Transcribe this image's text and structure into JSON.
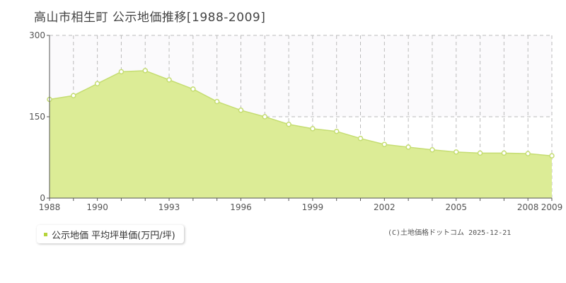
{
  "header": {
    "title": "高山市相生町 公示地価推移[1988-2009]"
  },
  "legend": {
    "label": "公示地価 平均坪単価(万円/坪)"
  },
  "footer": {
    "copyright": "(C)土地価格ドットコム 2025-12-21"
  },
  "colors": {
    "fill": "#dcec96",
    "line": "#c5dd72",
    "marker_stroke": "#c5dd72",
    "marker_fill": "#ffffff",
    "grid": "#bbbbbb",
    "accent": "#b5d43a"
  },
  "chart_data": {
    "type": "area",
    "title": "高山市相生町 公示地価推移[1988-2009]",
    "x": [
      1988,
      1989,
      1990,
      1991,
      1992,
      1993,
      1994,
      1995,
      1996,
      1997,
      1998,
      1999,
      2000,
      2001,
      2002,
      2003,
      2004,
      2005,
      2006,
      2007,
      2008,
      2009
    ],
    "series": [
      {
        "name": "公示地価 平均坪単価(万円/坪)",
        "values": [
          182,
          189,
          211,
          233,
          235,
          218,
          201,
          178,
          162,
          150,
          136,
          128,
          123,
          110,
          99,
          94,
          89,
          85,
          83,
          83,
          82,
          78
        ]
      }
    ],
    "ylim": [
      0,
      300
    ],
    "xlim": [
      1988,
      2009
    ],
    "yticks": [
      "0",
      "150",
      "300"
    ],
    "xticks": [
      "1988",
      "1990",
      "1993",
      "1996",
      "1999",
      "2002",
      "2005",
      "2008",
      "2009"
    ],
    "xlabel": "",
    "ylabel": "",
    "grid": true
  }
}
